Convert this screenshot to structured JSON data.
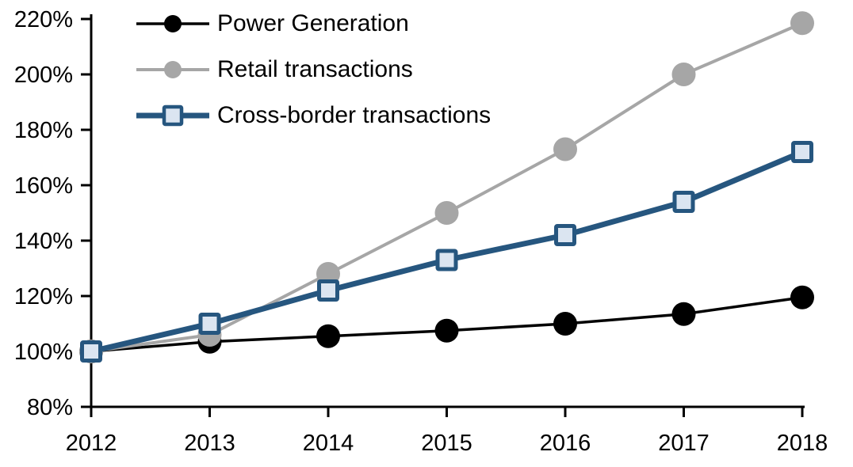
{
  "chart_data": {
    "type": "line",
    "title": "",
    "xlabel": "",
    "ylabel": "",
    "x_tick_labels": [
      "2012",
      "2013",
      "2014",
      "2015",
      "2016",
      "2017",
      "2018"
    ],
    "y_ticks": [
      80,
      100,
      120,
      140,
      160,
      180,
      200,
      220
    ],
    "y_tick_labels": [
      "80%",
      "100%",
      "120%",
      "140%",
      "160%",
      "180%",
      "200%",
      "220%"
    ],
    "ylim": [
      80,
      220
    ],
    "grid": false,
    "legend_position": "top-left",
    "series": [
      {
        "name": "Power Generation",
        "color": "#000000",
        "marker": "circle",
        "marker_fill": "#000000",
        "line_width": 3.5,
        "values": [
          100,
          103.5,
          105.5,
          107.5,
          110,
          113.5,
          119.5
        ]
      },
      {
        "name": "Retail transactions",
        "color": "#A6A6A6",
        "marker": "circle",
        "marker_fill": "#A6A6A6",
        "line_width": 4,
        "values": [
          100,
          106,
          128,
          150,
          173,
          200,
          218.5
        ]
      },
      {
        "name": "Cross-border transactions",
        "color": "#26567F",
        "marker": "square",
        "marker_fill": "#DBE5F1",
        "line_width": 7,
        "values": [
          100,
          110,
          122,
          133,
          142,
          154,
          172
        ]
      }
    ]
  }
}
